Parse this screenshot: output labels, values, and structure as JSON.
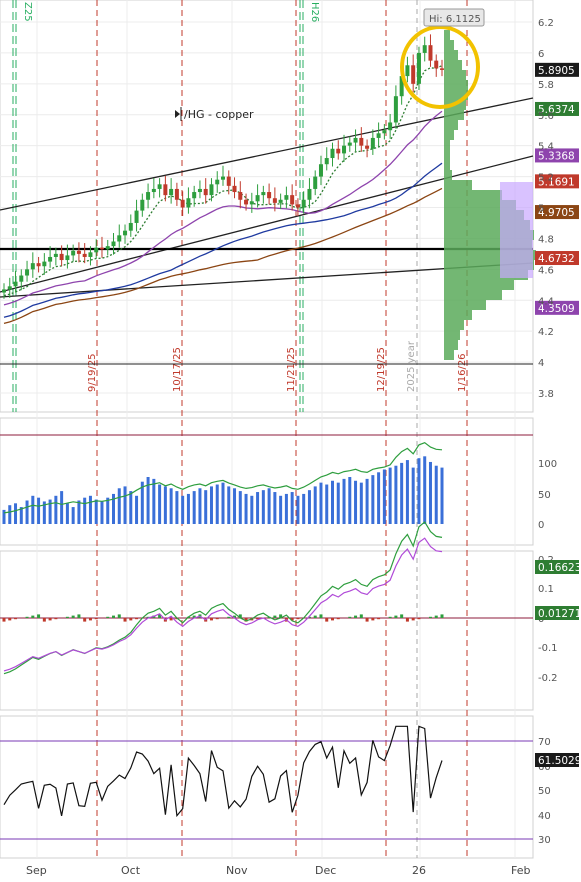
{
  "chart_data": [
    {
      "type": "candlestick",
      "symbol_label": "/HG - copper",
      "high_label": "Hi: 6.1125",
      "ylim": [
        3.6,
        6.3
      ],
      "y_ticks": [
        "6.2",
        "6",
        "5.8",
        "5.6",
        "5.4",
        "5.2",
        "5",
        "4.8",
        "4.6",
        "4.4",
        "4.2",
        "4",
        "3.8"
      ],
      "x_months": [
        "Sep",
        "Oct",
        "Nov",
        "Dec",
        "26",
        "Feb"
      ],
      "date_markers": [
        "9/19/25",
        "10/17/25",
        "11/21/25",
        "12/19/25",
        "1/16/26"
      ],
      "year_marker": "2025 year",
      "expiry_markers": [
        "Z25",
        "H26"
      ],
      "price_tags": [
        {
          "value": "5.8905",
          "color": "#1a1a1a"
        },
        {
          "value": "5.6374",
          "color": "#2e7d32"
        },
        {
          "value": "5.3368",
          "color": "#8e44ad"
        },
        {
          "value": "5.1691",
          "color": "#c0392b"
        },
        {
          "value": "4.9705",
          "color": "#8b4513"
        },
        {
          "value": "4.6732",
          "color": "#c0392b"
        },
        {
          "value": "4.3509",
          "color": "#8e44ad"
        }
      ],
      "closes": [
        4.47,
        4.49,
        4.52,
        4.56,
        4.6,
        4.64,
        4.62,
        4.65,
        4.68,
        4.7,
        4.66,
        4.69,
        4.72,
        4.7,
        4.68,
        4.71,
        4.74,
        4.73,
        4.75,
        4.78,
        4.82,
        4.85,
        4.9,
        4.98,
        5.05,
        5.1,
        5.12,
        5.15,
        5.08,
        5.12,
        5.05,
        5.0,
        5.06,
        5.1,
        5.12,
        5.08,
        5.15,
        5.18,
        5.2,
        5.14,
        5.1,
        5.05,
        5.02,
        5.04,
        5.08,
        5.1,
        5.06,
        5.03,
        5.05,
        5.08,
        5.02,
        5.0,
        5.05,
        5.12,
        5.2,
        5.28,
        5.32,
        5.38,
        5.35,
        5.4,
        5.42,
        5.45,
        5.4,
        5.38,
        5.45,
        5.48,
        5.5,
        5.55,
        5.72,
        5.85,
        5.92,
        5.8,
        6.0,
        6.05,
        5.95,
        5.9,
        5.89
      ],
      "volume_pct": [
        15,
        20,
        22,
        18,
        25,
        30,
        28,
        24,
        26,
        30,
        35,
        22,
        18,
        25,
        28,
        30,
        26,
        24,
        28,
        32,
        38,
        40,
        35,
        30,
        45,
        50,
        48,
        42,
        40,
        38,
        35,
        30,
        32,
        35,
        38,
        36,
        40,
        42,
        44,
        40,
        38,
        35,
        32,
        30,
        34,
        36,
        38,
        34,
        30,
        32,
        34,
        30,
        32,
        36,
        40,
        44,
        42,
        46,
        44,
        48,
        50,
        46,
        44,
        48,
        52,
        55,
        58,
        60,
        62,
        65,
        68,
        60,
        70,
        72,
        66,
        62,
        60
      ],
      "volume_axis": [
        "100",
        "50",
        "0"
      ],
      "macd_axis": [
        "0.2",
        "0.1",
        "0",
        "-0.1",
        "-0.2"
      ],
      "macd_values": {
        "macd": "0.16623",
        "histogram": "0.01271"
      },
      "rsi_axis": [
        "70",
        "60",
        "50",
        "40",
        "30"
      ],
      "rsi_value": "61.5029"
    }
  ]
}
